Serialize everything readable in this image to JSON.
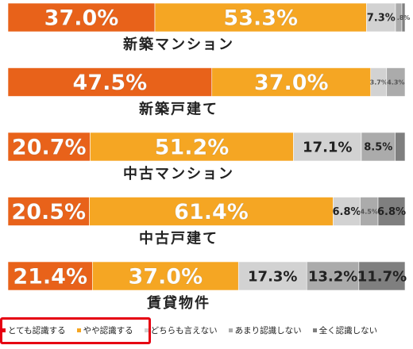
{
  "chart_data": {
    "type": "bar",
    "orientation": "horizontal",
    "stacked": true,
    "percent": true,
    "categories": [
      "新築マンション",
      "新築戸建て",
      "中古マンション",
      "中古戸建て",
      "賃貸物件"
    ],
    "series": [
      {
        "name": "とても認識する",
        "color": "#e8621a",
        "values": [
          37.0,
          47.5,
          20.7,
          20.5,
          21.4
        ],
        "labels": [
          "37.0%",
          "47.5%",
          "20.7%",
          "20.5%",
          "21.4%"
        ]
      },
      {
        "name": "やや認識する",
        "color": "#f5a623",
        "values": [
          53.3,
          37.0,
          51.2,
          61.4,
          37.0
        ],
        "labels": [
          "53.3%",
          "37.0%",
          "51.2%",
          "61.4%",
          "37.0%"
        ]
      },
      {
        "name": "どちらも言えない",
        "color": "#d2d2d2",
        "values": [
          7.3,
          3.7,
          17.1,
          6.8,
          17.3
        ],
        "labels": [
          "7.3%",
          "3.7%",
          "17.1%",
          "6.8%",
          "17.3%"
        ]
      },
      {
        "name": "あまり認識しない",
        "color": "#ababab",
        "values": [
          1.6,
          4.3,
          8.5,
          4.5,
          13.2
        ],
        "labels": [
          "",
          "4.3%",
          "8.5%",
          "4.5%",
          "13.2%"
        ]
      },
      {
        "name": "全く認識しない",
        "color": "#7f7f7f",
        "values": [
          0.8,
          0.0,
          2.5,
          6.8,
          11.7
        ],
        "labels": [
          ".8%",
          "",
          "",
          "6.8%",
          "11.7%"
        ]
      }
    ],
    "legend_position": "bottom-left",
    "highlighted_legend_items": [
      "とても認識する",
      "やや認識する"
    ]
  }
}
